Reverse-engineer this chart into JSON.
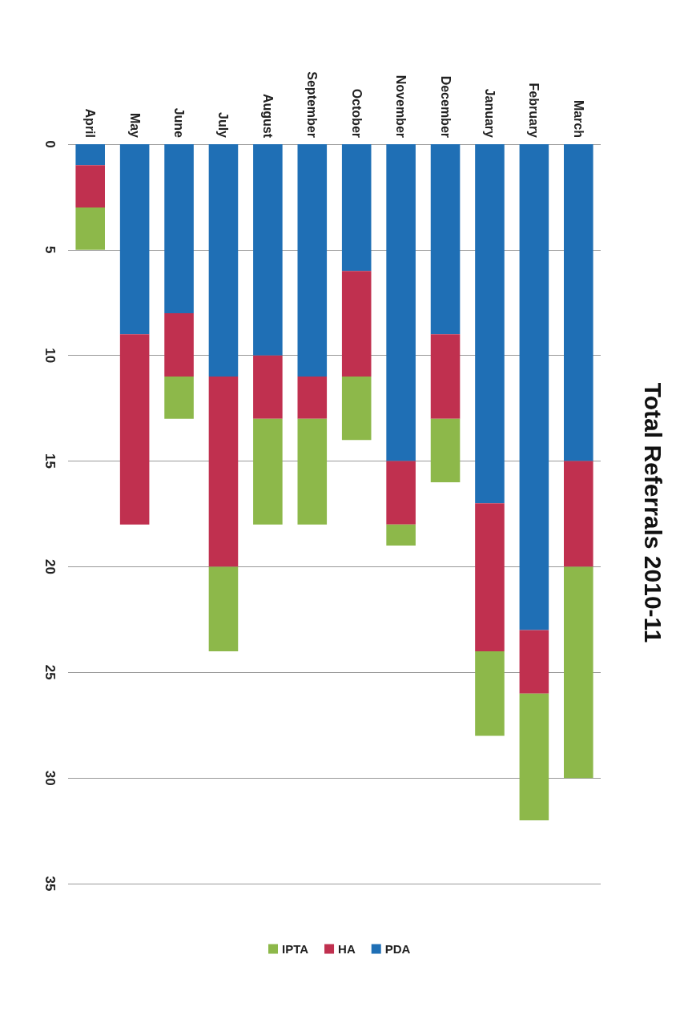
{
  "chart_data": {
    "type": "bar",
    "title": "Total Referrals 2010-11",
    "stacked": true,
    "categories": [
      "April",
      "May",
      "June",
      "July",
      "August",
      "September",
      "October",
      "November",
      "December",
      "January",
      "February",
      "March"
    ],
    "series": [
      {
        "name": "PDA",
        "color": "#1f6fb5",
        "values": [
          1,
          9,
          8,
          11,
          10,
          11,
          6,
          15,
          9,
          17,
          23,
          15
        ]
      },
      {
        "name": "HA",
        "color": "#c0304f",
        "values": [
          2,
          9,
          3,
          9,
          3,
          2,
          5,
          3,
          4,
          7,
          3,
          5
        ]
      },
      {
        "name": "IPTA",
        "color": "#8db84a",
        "values": [
          2,
          0,
          2,
          4,
          5,
          5,
          3,
          1,
          3,
          4,
          6,
          10
        ]
      }
    ],
    "ylim": [
      35,
      0
    ],
    "yticks": [
      0,
      5,
      10,
      15,
      20,
      25,
      30,
      35
    ],
    "grid": "y",
    "legend": "bottom"
  }
}
